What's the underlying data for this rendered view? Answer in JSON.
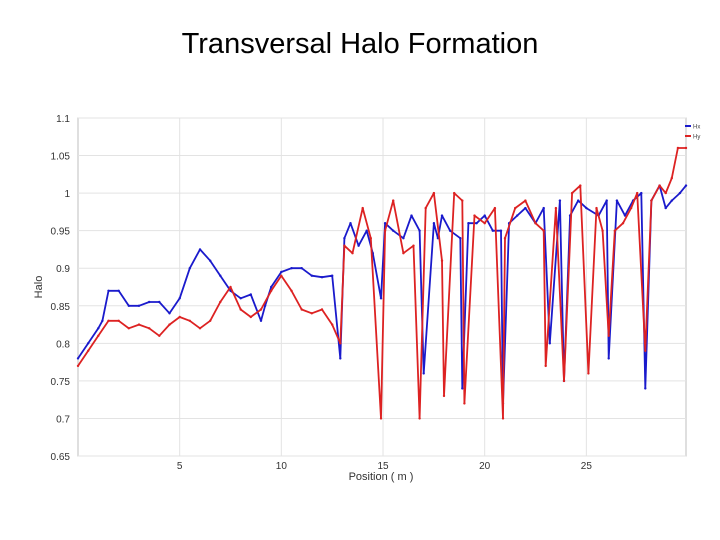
{
  "slide": {
    "title": "Transversal Halo Formation"
  },
  "chart_data": {
    "type": "line",
    "title": "",
    "xlabel": "Position ( m )",
    "ylabel": "Halo",
    "xlim": [
      0,
      29.9
    ],
    "ylim": [
      0.65,
      1.1
    ],
    "x_ticks": [
      5,
      10,
      15,
      20,
      25
    ],
    "y_ticks": [
      0.65,
      0.7,
      0.75,
      0.8,
      0.85,
      0.9,
      0.95,
      1,
      1.05,
      1.1
    ],
    "grid": true,
    "legend_position": "top-right",
    "legend_caption": "",
    "series": [
      {
        "name": "Hx",
        "color": "#1a1acc",
        "x": [
          0,
          0.5,
          1,
          1.2,
          1.5,
          2,
          2.5,
          3,
          3.5,
          4,
          4.5,
          5,
          5.5,
          6,
          6.5,
          7,
          7.5,
          8,
          8.5,
          9,
          9.2,
          9.5,
          10,
          10.5,
          11,
          11.5,
          12,
          12.5,
          12.9,
          13.1,
          13.4,
          13.8,
          14.2,
          14.5,
          14.9,
          15.1,
          15.5,
          16,
          16.4,
          16.8,
          17,
          17.5,
          17.7,
          17.9,
          18.3,
          18.8,
          18.9,
          19.2,
          19.6,
          20,
          20.4,
          20.8,
          20.9,
          21.2,
          21.6,
          22,
          22.5,
          22.9,
          23.2,
          23.7,
          23.9,
          24.2,
          24.6,
          25,
          25.6,
          26,
          26.1,
          26.5,
          26.9,
          27.3,
          27.7,
          27.9,
          28.2,
          28.6,
          28.9,
          29.2,
          29.6,
          29.9
        ],
        "y": [
          0.78,
          0.8,
          0.82,
          0.83,
          0.87,
          0.87,
          0.85,
          0.85,
          0.855,
          0.855,
          0.84,
          0.86,
          0.9,
          0.925,
          0.91,
          0.89,
          0.87,
          0.86,
          0.865,
          0.83,
          0.85,
          0.875,
          0.895,
          0.9,
          0.9,
          0.89,
          0.888,
          0.89,
          0.78,
          0.94,
          0.96,
          0.93,
          0.95,
          0.92,
          0.86,
          0.96,
          0.95,
          0.94,
          0.97,
          0.95,
          0.76,
          0.96,
          0.94,
          0.97,
          0.95,
          0.94,
          0.74,
          0.96,
          0.96,
          0.97,
          0.95,
          0.95,
          0.72,
          0.96,
          0.97,
          0.98,
          0.96,
          0.98,
          0.8,
          0.99,
          0.75,
          0.97,
          0.99,
          0.98,
          0.97,
          0.99,
          0.78,
          0.99,
          0.97,
          0.99,
          1.0,
          0.74,
          0.99,
          1.01,
          0.98,
          0.99,
          1.0,
          1.01
        ]
      },
      {
        "name": "Hy",
        "color": "#dd2222",
        "x": [
          0,
          0.5,
          1,
          1.5,
          2,
          2.5,
          3,
          3.5,
          4,
          4.5,
          5,
          5.5,
          6,
          6.5,
          7,
          7.5,
          8,
          8.5,
          9,
          9.5,
          10,
          10.5,
          11,
          11.5,
          12,
          12.5,
          12.9,
          13.1,
          13.5,
          14,
          14.4,
          14.9,
          15.1,
          15.5,
          16,
          16.5,
          16.8,
          17.1,
          17.5,
          17.9,
          18,
          18.5,
          18.9,
          19,
          19.5,
          20,
          20.5,
          20.9,
          21,
          21.5,
          22,
          22.5,
          22.9,
          23,
          23.5,
          23.9,
          24.3,
          24.7,
          25.1,
          25.5,
          25.8,
          26.1,
          26.4,
          26.8,
          27.2,
          27.5,
          27.9,
          28.2,
          28.6,
          28.9,
          29.2,
          29.5,
          29.9
        ],
        "y": [
          0.77,
          0.79,
          0.81,
          0.83,
          0.83,
          0.82,
          0.825,
          0.82,
          0.81,
          0.825,
          0.835,
          0.83,
          0.82,
          0.83,
          0.855,
          0.875,
          0.845,
          0.835,
          0.845,
          0.87,
          0.89,
          0.87,
          0.845,
          0.84,
          0.845,
          0.825,
          0.8,
          0.93,
          0.92,
          0.98,
          0.94,
          0.7,
          0.95,
          0.99,
          0.92,
          0.93,
          0.7,
          0.98,
          1.0,
          0.91,
          0.73,
          1.0,
          0.99,
          0.72,
          0.97,
          0.96,
          0.98,
          0.7,
          0.94,
          0.98,
          0.99,
          0.96,
          0.95,
          0.77,
          0.98,
          0.75,
          1.0,
          1.01,
          0.76,
          0.98,
          0.95,
          0.81,
          0.95,
          0.96,
          0.98,
          1.0,
          0.79,
          0.99,
          1.01,
          1.0,
          1.02,
          1.06,
          1.06
        ]
      }
    ]
  }
}
